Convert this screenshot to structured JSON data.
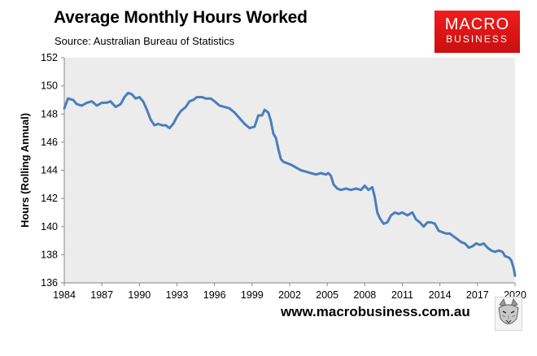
{
  "header": {
    "title": "Average Monthly Hours Worked",
    "subtitle": "Source: Australian Bureau of Statistics"
  },
  "logo": {
    "line1": "MACRO",
    "line2": "BUSINESS"
  },
  "footer": {
    "url": "www.macrobusiness.com.au",
    "mascot_icon": "wolf-icon"
  },
  "colors": {
    "line": "#4a7ebb",
    "plot_background": "#ececec",
    "logo": "#e31b1b"
  },
  "chart_data": {
    "type": "line",
    "title": "Average Monthly Hours Worked",
    "subtitle": "Source: Australian Bureau of Statistics",
    "xlabel": "",
    "ylabel": "Hours (Rolling Annual)",
    "xlim": [
      1984,
      2020
    ],
    "ylim": [
      136,
      152
    ],
    "x_ticks": [
      "1984",
      "1987",
      "1990",
      "1993",
      "1996",
      "1999",
      "2002",
      "2005",
      "2008",
      "2011",
      "2014",
      "2017",
      "2020"
    ],
    "y_ticks": [
      "136",
      "138",
      "140",
      "142",
      "144",
      "146",
      "148",
      "150",
      "152"
    ],
    "grid": false,
    "legend": "none",
    "series": [
      {
        "x": [
          1984.0,
          1984.3,
          1984.7,
          1985.0,
          1985.4,
          1985.8,
          1986.2,
          1986.6,
          1987.0,
          1987.4,
          1987.7,
          1988.1,
          1988.5,
          1988.8,
          1989.1,
          1989.4,
          1989.7,
          1990.0,
          1990.3,
          1990.6,
          1990.9,
          1991.2,
          1991.5,
          1991.8,
          1992.1,
          1992.4,
          1992.7,
          1993.0,
          1993.3,
          1993.7,
          1994.0,
          1994.3,
          1994.6,
          1995.0,
          1995.3,
          1995.7,
          1996.0,
          1996.4,
          1996.8,
          1997.2,
          1997.6,
          1998.0,
          1998.4,
          1998.8,
          1999.2,
          1999.5,
          1999.8,
          2000.0,
          2000.3,
          2000.5,
          2000.7,
          2000.9,
          2001.1,
          2001.3,
          2001.5,
          2001.8,
          2002.1,
          2002.5,
          2002.9,
          2003.3,
          2003.7,
          2004.1,
          2004.5,
          2004.9,
          2005.1,
          2005.3,
          2005.5,
          2005.8,
          2006.1,
          2006.5,
          2006.9,
          2007.3,
          2007.7,
          2008.0,
          2008.3,
          2008.6,
          2008.8,
          2009.0,
          2009.2,
          2009.5,
          2009.8,
          2010.1,
          2010.4,
          2010.7,
          2011.0,
          2011.4,
          2011.8,
          2012.1,
          2012.4,
          2012.7,
          2013.0,
          2013.3,
          2013.6,
          2013.9,
          2014.2,
          2014.5,
          2014.8,
          2015.1,
          2015.4,
          2015.7,
          2016.0,
          2016.3,
          2016.6,
          2016.9,
          2017.2,
          2017.5,
          2017.8,
          2018.1,
          2018.4,
          2018.7,
          2019.0,
          2019.2,
          2019.5,
          2019.7,
          2019.9,
          2020.0
        ],
        "values": [
          148.4,
          149.1,
          149.0,
          148.7,
          148.6,
          148.8,
          148.9,
          148.6,
          148.8,
          148.8,
          148.9,
          148.5,
          148.7,
          149.2,
          149.5,
          149.4,
          149.1,
          149.2,
          148.9,
          148.3,
          147.6,
          147.2,
          147.3,
          147.2,
          147.2,
          147.0,
          147.3,
          147.8,
          148.2,
          148.5,
          148.9,
          149.0,
          149.2,
          149.2,
          149.1,
          149.1,
          148.9,
          148.6,
          148.5,
          148.4,
          148.1,
          147.7,
          147.3,
          147.0,
          147.1,
          147.9,
          147.9,
          148.3,
          148.1,
          147.5,
          146.6,
          146.3,
          145.5,
          144.8,
          144.6,
          144.5,
          144.4,
          144.2,
          144.0,
          143.9,
          143.8,
          143.7,
          143.8,
          143.7,
          143.8,
          143.6,
          143.0,
          142.7,
          142.6,
          142.7,
          142.6,
          142.7,
          142.6,
          142.9,
          142.6,
          142.8,
          142.1,
          141.0,
          140.6,
          140.2,
          140.3,
          140.8,
          141.0,
          140.9,
          141.0,
          140.8,
          141.0,
          140.5,
          140.3,
          140.0,
          140.3,
          140.3,
          140.2,
          139.7,
          139.6,
          139.5,
          139.5,
          139.3,
          139.1,
          138.9,
          138.8,
          138.5,
          138.6,
          138.8,
          138.7,
          138.8,
          138.5,
          138.3,
          138.2,
          138.3,
          138.2,
          137.9,
          137.8,
          137.6,
          137.0,
          136.5
        ]
      }
    ]
  }
}
